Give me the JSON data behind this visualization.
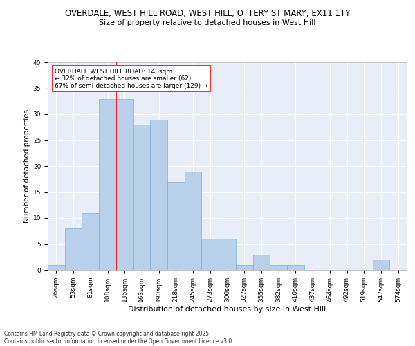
{
  "title1": "OVERDALE, WEST HILL ROAD, WEST HILL, OTTERY ST MARY, EX11 1TY",
  "title2": "Size of property relative to detached houses in West Hill",
  "xlabel": "Distribution of detached houses by size in West Hill",
  "ylabel": "Number of detached properties",
  "categories": [
    "26sqm",
    "53sqm",
    "81sqm",
    "108sqm",
    "136sqm",
    "163sqm",
    "190sqm",
    "218sqm",
    "245sqm",
    "273sqm",
    "300sqm",
    "327sqm",
    "355sqm",
    "382sqm",
    "410sqm",
    "437sqm",
    "464sqm",
    "492sqm",
    "519sqm",
    "547sqm",
    "574sqm"
  ],
  "values": [
    1,
    8,
    11,
    33,
    33,
    28,
    29,
    17,
    19,
    6,
    6,
    1,
    3,
    1,
    1,
    0,
    0,
    0,
    0,
    2,
    0
  ],
  "bar_color": "#b8d0ea",
  "bar_edge_color": "#7aafd4",
  "vline_color": "red",
  "vline_x": 3.5,
  "annotation_text": "OVERDALE WEST HILL ROAD: 143sqm\n← 32% of detached houses are smaller (62)\n67% of semi-detached houses are larger (129) →",
  "annotation_box_facecolor": "white",
  "annotation_box_edgecolor": "red",
  "ylim": [
    0,
    40
  ],
  "yticks": [
    0,
    5,
    10,
    15,
    20,
    25,
    30,
    35,
    40
  ],
  "background_color": "#e8eef8",
  "grid_color": "white",
  "footer": "Contains HM Land Registry data © Crown copyright and database right 2025.\nContains public sector information licensed under the Open Government Licence v3.0.",
  "title1_fontsize": 8.5,
  "title2_fontsize": 8,
  "tick_fontsize": 6.5,
  "ylabel_fontsize": 7.5,
  "xlabel_fontsize": 8,
  "annotation_fontsize": 6.5,
  "footer_fontsize": 5.5
}
